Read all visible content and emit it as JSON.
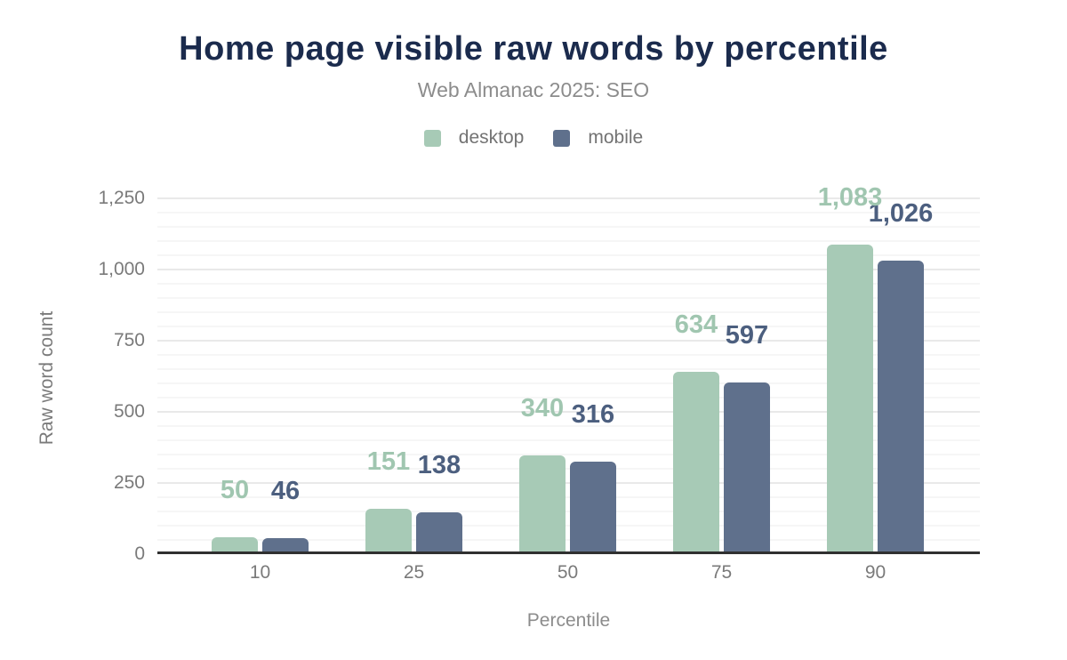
{
  "chart_data": {
    "type": "bar",
    "title": "Home page visible raw words by percentile",
    "subtitle": "Web Almanac 2025: SEO",
    "xlabel": "Percentile",
    "ylabel": "Raw word count",
    "categories": [
      "10",
      "25",
      "50",
      "75",
      "90"
    ],
    "series": [
      {
        "name": "desktop",
        "color": "#a7cab6",
        "label_color": "#a0c6b0",
        "values": [
          50,
          151,
          340,
          634,
          1083
        ],
        "labels": [
          "50",
          "151",
          "340",
          "634",
          "1,083"
        ]
      },
      {
        "name": "mobile",
        "color": "#5f708c",
        "label_color": "#4c5f7f",
        "values": [
          46,
          138,
          316,
          597,
          1026
        ],
        "labels": [
          "46",
          "138",
          "316",
          "597",
          "1,026"
        ]
      }
    ],
    "ylim": [
      0,
      1250
    ],
    "yticks": [
      "0",
      "250",
      "500",
      "750",
      "1,000",
      "1,250"
    ],
    "grid": "horizontal, major every 250 with minor every 50",
    "legend_position": "top"
  },
  "colors": {
    "title": "#1b2b4d",
    "axis_line": "#303030",
    "tick_text": "#7a7a7a"
  }
}
